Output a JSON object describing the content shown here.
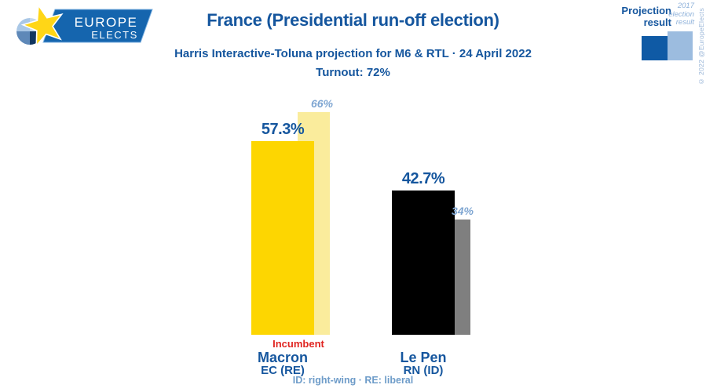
{
  "brand": {
    "logo_line1": "EUROPE",
    "logo_line2": "ELECTS",
    "copyright": "© 2022 @EuropeElects"
  },
  "header": {
    "title": "France (Presidential run-off election)",
    "subtitle": "Harris Interactive-Toluna projection for M6 & RTL · 24 April 2022",
    "turnout": "Turnout: 72%"
  },
  "legend": {
    "projection_lines": [
      "Projection",
      "result"
    ],
    "previous_lines": [
      "2017",
      "election",
      "result"
    ],
    "projection_color": "#0F5AA5",
    "previous_color": "#9CBCDF"
  },
  "chart_data": {
    "type": "bar",
    "title": "France (Presidential run-off election)",
    "subtitle": "Harris Interactive-Toluna projection for M6 & RTL · 24 April 2022",
    "turnout_percent": 72,
    "categories": [
      "Macron",
      "Le Pen"
    ],
    "series": [
      {
        "name": "Projection result",
        "values": [
          57.3,
          42.7
        ],
        "labels": [
          "57.3%",
          "42.7%"
        ],
        "colors": [
          "#FDD601",
          "#000000"
        ]
      },
      {
        "name": "2017 election result",
        "values": [
          66,
          34
        ],
        "labels": [
          "66%",
          "34%"
        ],
        "colors": [
          "#FAEC9C",
          "#7F7F7F"
        ]
      }
    ],
    "ylim": [
      0,
      70
    ],
    "grid": false,
    "legend_position": "top-right"
  },
  "candidates": [
    {
      "name": "Macron",
      "party": "EC (RE)",
      "tag": "Incumbent"
    },
    {
      "name": "Le Pen",
      "party": "RN (ID)",
      "tag": ""
    }
  ],
  "footer": {
    "note": "ID: right-wing · RE: liberal"
  },
  "colors": {
    "text_primary": "#15569E",
    "text_secondary": "#7FA6D2",
    "incumbent_red": "#E02521"
  }
}
